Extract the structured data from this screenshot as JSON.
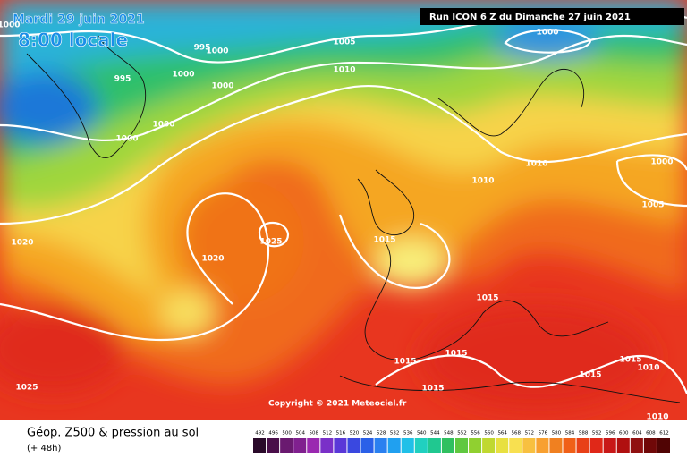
{
  "header": {
    "date": "Mardi 29 juin 2021",
    "time": "8:00 locale",
    "run": "Run ICON 6 Z du Dimanche 27 juin 2021"
  },
  "copyright": "Copyright © 2021 Meteociel.fr",
  "legend": {
    "title": "Géop. Z500 & pression au sol",
    "lead": "(+ 48h)",
    "scale": [
      492,
      496,
      500,
      504,
      508,
      512,
      516,
      520,
      524,
      528,
      532,
      536,
      540,
      544,
      548,
      552,
      556,
      560,
      564,
      568,
      572,
      576,
      580,
      584,
      588,
      592,
      596,
      600,
      604,
      608,
      612
    ]
  },
  "isobar_labels": [
    "1000",
    "995",
    "1000",
    "1000",
    "995",
    "1000",
    "1000",
    "1000",
    "1005",
    "1000",
    "1010",
    "1010",
    "1010",
    "1000",
    "1005",
    "1020",
    "1025",
    "1020",
    "1015",
    "1015",
    "1015",
    "1015",
    "1015",
    "1015",
    "1015",
    "1010",
    "1010",
    "1025"
  ]
}
